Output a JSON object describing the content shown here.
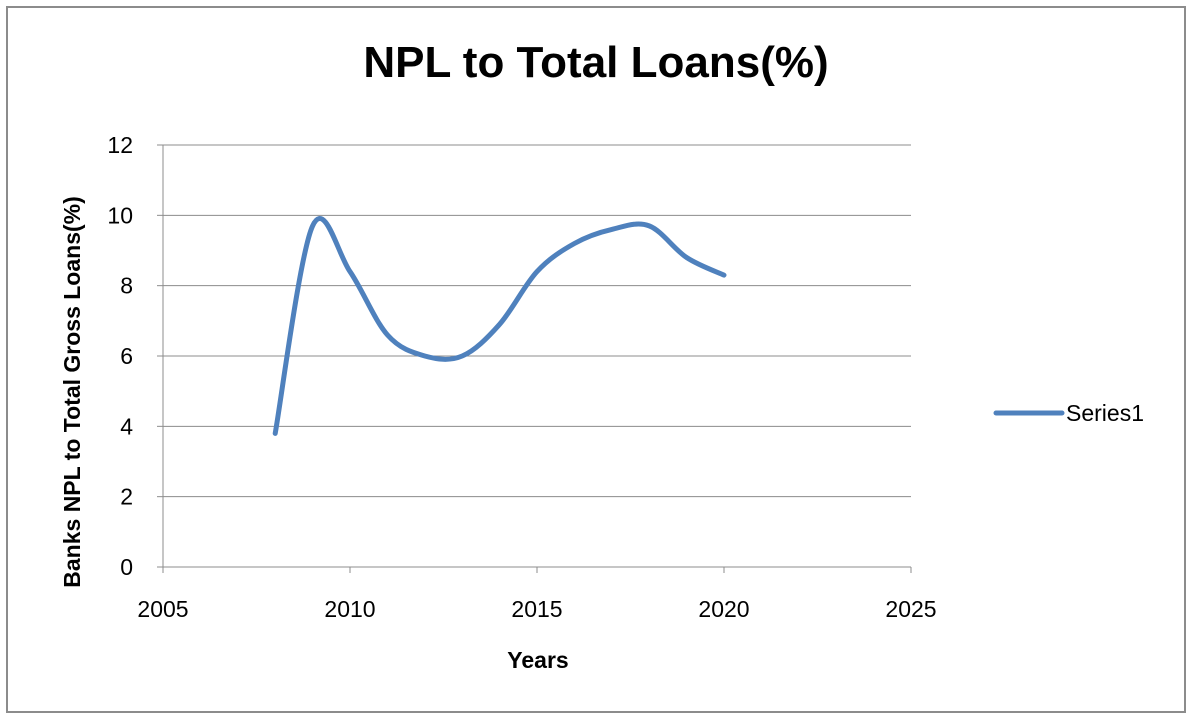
{
  "chart_data": {
    "type": "line",
    "title": "NPL to Total Loans(%)",
    "xlabel": "Years",
    "ylabel": "Banks NPL to Total Gross Loans(%)",
    "xlim": [
      2005,
      2025
    ],
    "ylim": [
      0,
      12
    ],
    "x_ticks": [
      "2005",
      "2010",
      "2015",
      "2020",
      "2025"
    ],
    "y_ticks": [
      "0",
      "2",
      "4",
      "6",
      "8",
      "10",
      "12"
    ],
    "grid": true,
    "legend_position": "right",
    "smooth": true,
    "series": [
      {
        "name": "Series1",
        "color": "#4f81bd",
        "x": [
          2008,
          2009,
          2010,
          2011,
          2012,
          2013,
          2014,
          2015,
          2016,
          2017,
          2018,
          2019,
          2020
        ],
        "y": [
          3.8,
          9.7,
          8.4,
          6.6,
          6.0,
          6.0,
          6.9,
          8.4,
          9.2,
          9.6,
          9.7,
          8.8,
          8.3
        ]
      }
    ]
  }
}
